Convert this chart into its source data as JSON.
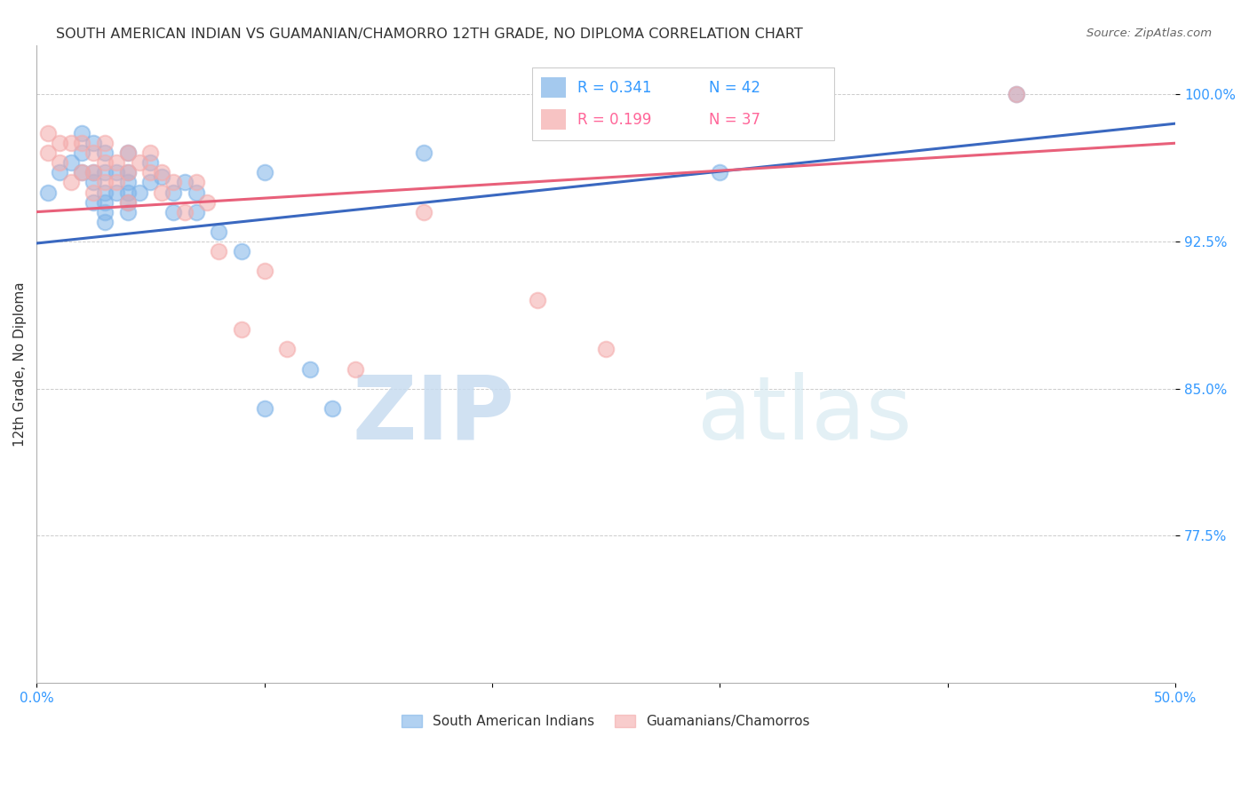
{
  "title": "SOUTH AMERICAN INDIAN VS GUAMANIAN/CHAMORRO 12TH GRADE, NO DIPLOMA CORRELATION CHART",
  "source": "Source: ZipAtlas.com",
  "ylabel": "12th Grade, No Diploma",
  "yticks_labels": [
    "100.0%",
    "92.5%",
    "85.0%",
    "77.5%"
  ],
  "ytick_vals": [
    1.0,
    0.925,
    0.85,
    0.775
  ],
  "xlim": [
    0.0,
    0.5
  ],
  "ylim": [
    0.7,
    1.025
  ],
  "legend_blue_r": "R = 0.341",
  "legend_blue_n": "N = 42",
  "legend_pink_r": "R = 0.199",
  "legend_pink_n": "N = 37",
  "legend_blue_label": "South American Indians",
  "legend_pink_label": "Guamanians/Chamorros",
  "blue_color": "#7EB3E8",
  "pink_color": "#F4AAAA",
  "blue_line_color": "#3A68C0",
  "pink_line_color": "#E8607A",
  "text_blue_color": "#3399FF",
  "text_pink_color": "#FF6699",
  "watermark_zip": "ZIP",
  "watermark_atlas": "atlas",
  "blue_x": [
    0.005,
    0.01,
    0.015,
    0.02,
    0.02,
    0.02,
    0.025,
    0.025,
    0.025,
    0.025,
    0.03,
    0.03,
    0.03,
    0.03,
    0.03,
    0.03,
    0.035,
    0.035,
    0.04,
    0.04,
    0.04,
    0.04,
    0.04,
    0.04,
    0.045,
    0.05,
    0.05,
    0.055,
    0.06,
    0.06,
    0.065,
    0.07,
    0.07,
    0.08,
    0.09,
    0.1,
    0.1,
    0.12,
    0.13,
    0.17,
    0.3,
    0.43
  ],
  "blue_y": [
    0.95,
    0.96,
    0.965,
    0.98,
    0.97,
    0.96,
    0.975,
    0.96,
    0.955,
    0.945,
    0.97,
    0.96,
    0.95,
    0.945,
    0.94,
    0.935,
    0.96,
    0.95,
    0.97,
    0.96,
    0.955,
    0.95,
    0.945,
    0.94,
    0.95,
    0.965,
    0.955,
    0.958,
    0.95,
    0.94,
    0.955,
    0.95,
    0.94,
    0.93,
    0.92,
    0.96,
    0.84,
    0.86,
    0.84,
    0.97,
    0.96,
    1.0
  ],
  "pink_x": [
    0.005,
    0.005,
    0.01,
    0.01,
    0.015,
    0.015,
    0.02,
    0.02,
    0.025,
    0.025,
    0.025,
    0.03,
    0.03,
    0.03,
    0.035,
    0.035,
    0.04,
    0.04,
    0.04,
    0.045,
    0.05,
    0.05,
    0.055,
    0.055,
    0.06,
    0.065,
    0.07,
    0.075,
    0.08,
    0.09,
    0.1,
    0.11,
    0.14,
    0.17,
    0.22,
    0.25,
    0.43
  ],
  "pink_y": [
    0.98,
    0.97,
    0.975,
    0.965,
    0.975,
    0.955,
    0.975,
    0.96,
    0.97,
    0.96,
    0.95,
    0.975,
    0.965,
    0.955,
    0.965,
    0.955,
    0.97,
    0.96,
    0.945,
    0.965,
    0.97,
    0.96,
    0.96,
    0.95,
    0.955,
    0.94,
    0.955,
    0.945,
    0.92,
    0.88,
    0.91,
    0.87,
    0.86,
    0.94,
    0.895,
    0.87,
    1.0
  ],
  "blue_trend": [
    0.0,
    0.5,
    0.924,
    0.985
  ],
  "pink_trend": [
    0.0,
    0.5,
    0.94,
    0.975
  ],
  "grid_color": "#CCCCCC",
  "marker_size": 160,
  "marker_lw": 1.5,
  "marker_alpha": 0.55,
  "title_fontsize": 11.5,
  "source_fontsize": 9.5,
  "tick_fontsize": 11,
  "ylabel_fontsize": 11,
  "legend_fontsize": 12,
  "title_color": "#333333",
  "source_color": "#666666",
  "axis_label_color": "#333333",
  "tick_color": "#3399FF"
}
